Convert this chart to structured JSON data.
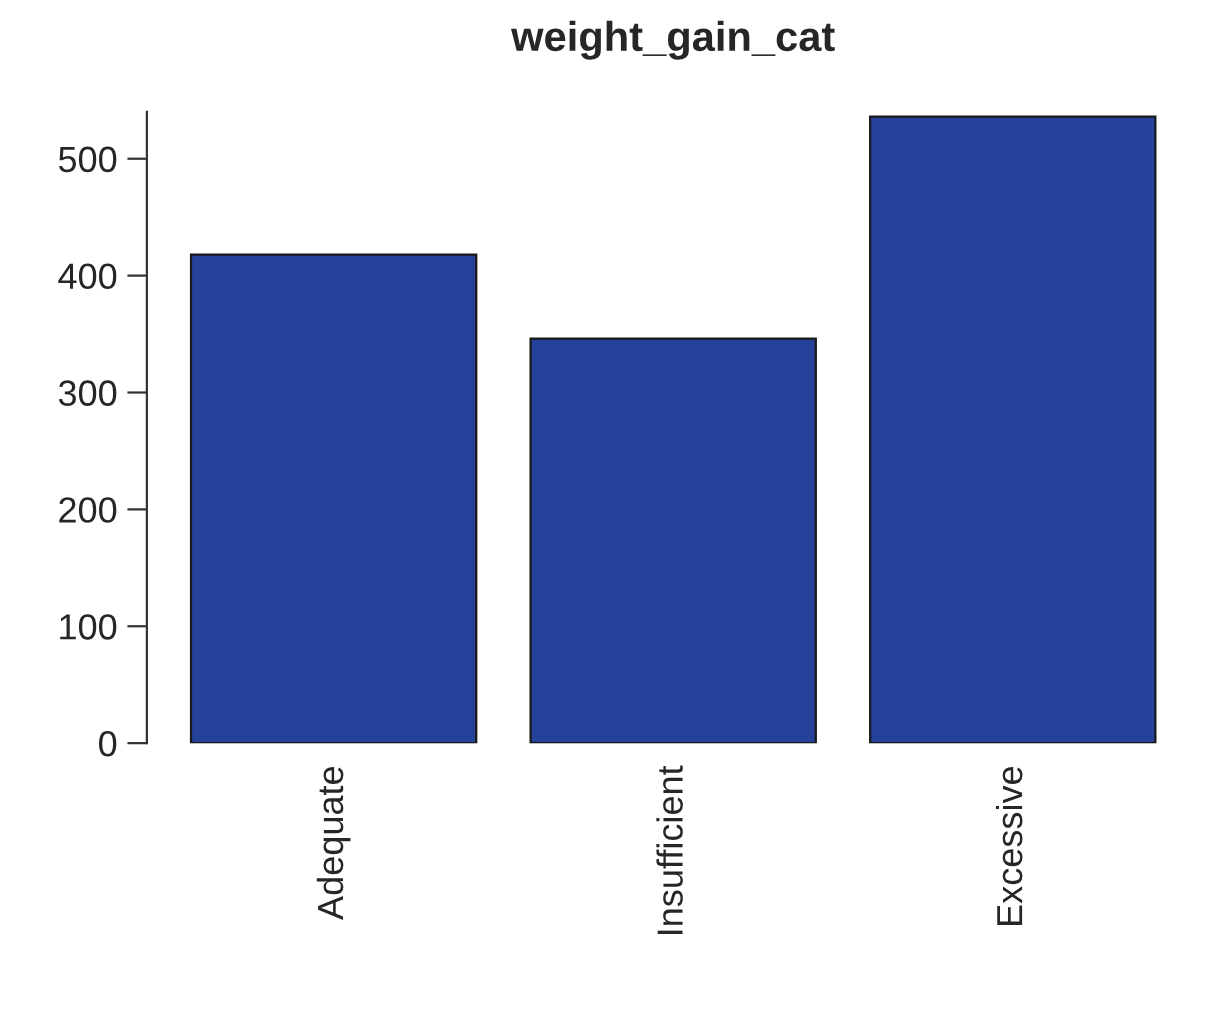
{
  "chart_data": {
    "type": "bar",
    "title": "weight_gain_cat",
    "categories": [
      "Adequate",
      "Insufficient",
      "Excessive"
    ],
    "values": [
      418,
      346,
      536
    ],
    "color": "#25419a",
    "ylim": [
      0,
      540
    ],
    "yticks": [
      0,
      100,
      200,
      300,
      400,
      500
    ],
    "grid": false
  }
}
